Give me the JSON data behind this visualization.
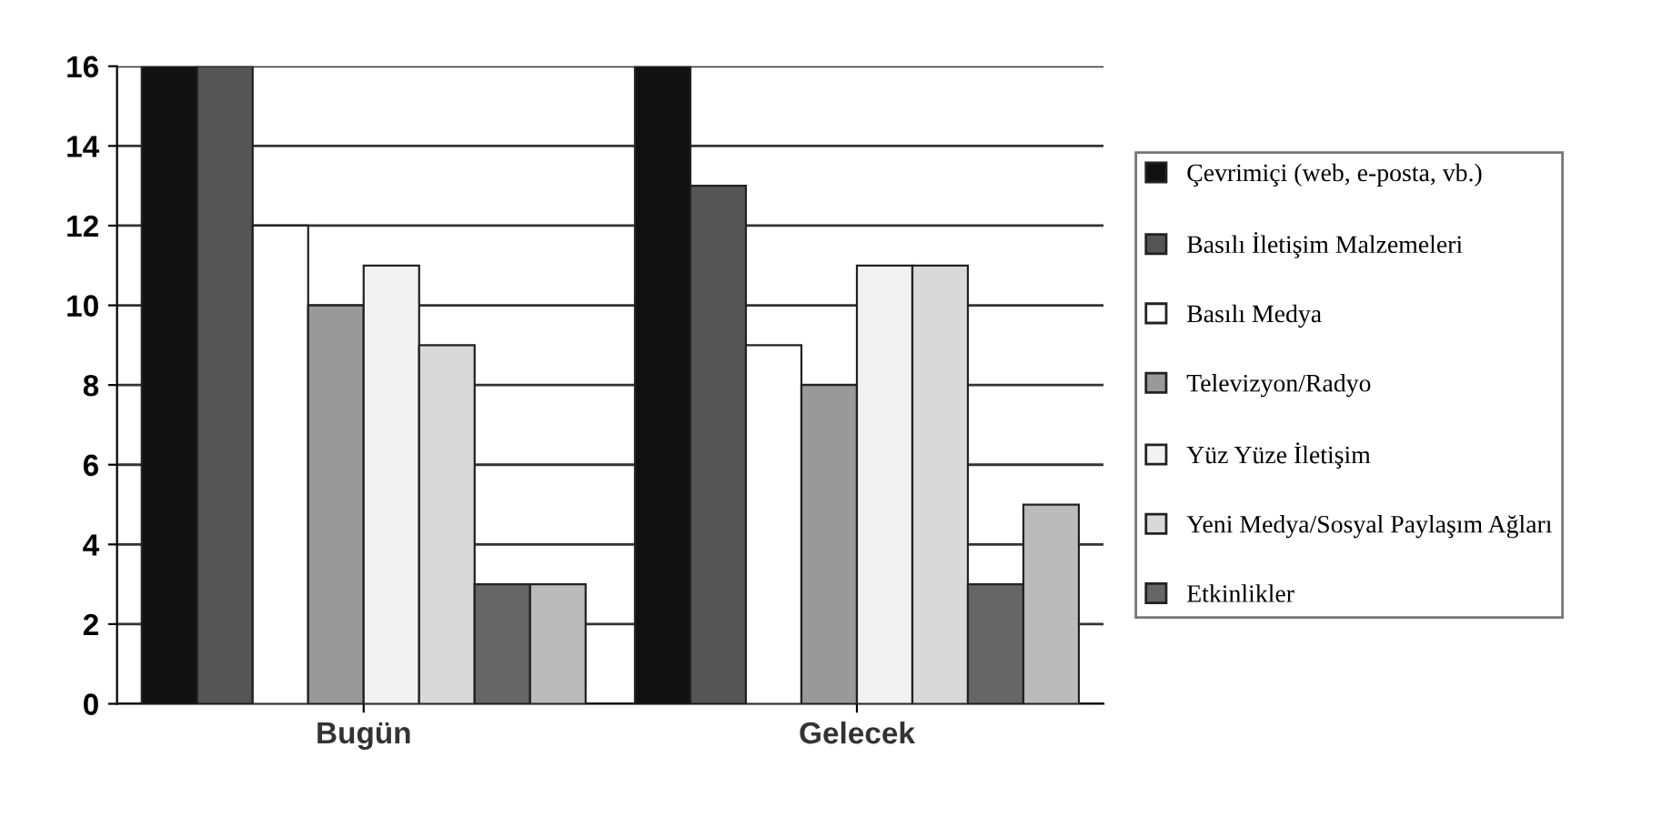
{
  "chart_data": {
    "type": "bar",
    "categories": [
      "Bugün",
      "Gelecek"
    ],
    "series": [
      {
        "name": "Çevrimiçi (web, e-posta, vb.)",
        "color": "#111111",
        "values": [
          16,
          16
        ]
      },
      {
        "name": "Basılı İletişim Malzemeleri",
        "color": "#555555",
        "values": [
          16,
          13
        ]
      },
      {
        "name": "Basılı Medya",
        "color": "#ffffff",
        "values": [
          12,
          9
        ]
      },
      {
        "name": "Televizyon/Radyo",
        "color": "#999999",
        "values": [
          10,
          8
        ]
      },
      {
        "name": "Yüz Yüze İletişim",
        "color": "#f2f2f2",
        "values": [
          11,
          11
        ]
      },
      {
        "name": "Yeni Medya/Sosyal Paylaşım Ağları",
        "color": "#d9d9d9",
        "values": [
          9,
          11
        ]
      },
      {
        "name": "Etkinlikler",
        "color": "#666666",
        "values": [
          3,
          3
        ]
      },
      {
        "color": "#bbbbbb",
        "values": [
          3,
          5
        ]
      }
    ],
    "ylim": [
      0,
      16
    ],
    "yticks": [
      0,
      2,
      4,
      6,
      8,
      10,
      12,
      14,
      16
    ],
    "grid": "y",
    "legend": "right"
  }
}
